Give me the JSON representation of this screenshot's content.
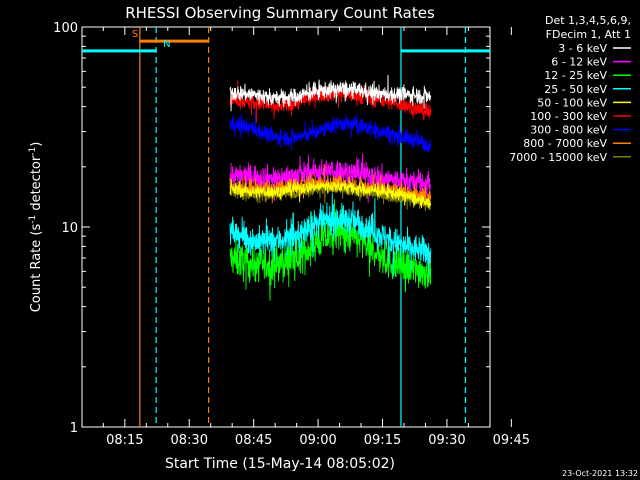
{
  "chart_data": {
    "type": "line",
    "title": "RHESSI Observing Summary Count Rates",
    "xlabel": "Start Time (15-May-14 08:05:02)",
    "ylabel_main": "Count Rate (s",
    "ylabel_sup1": "-1",
    "ylabel_mid": " detector",
    "ylabel_sup2": "-1",
    "ylabel_end": ")",
    "yscale": "log",
    "xlim_minutes": [
      5.03,
      100.03
    ],
    "ylim": [
      1,
      100
    ],
    "x_ticks": [
      {
        "label": "08:15",
        "minutes": 15
      },
      {
        "label": "08:30",
        "minutes": 30
      },
      {
        "label": "08:45",
        "minutes": 45
      },
      {
        "label": "09:00",
        "minutes": 60
      },
      {
        "label": "09:15",
        "minutes": 75
      },
      {
        "label": "09:30",
        "minutes": 90
      },
      {
        "label": "09:45",
        "minutes": 105
      }
    ],
    "y_ticks": [
      {
        "label": "1",
        "value": 1
      },
      {
        "label": "10",
        "value": 10
      },
      {
        "label": "100",
        "value": 100
      }
    ],
    "legend_header": [
      "Det 1,3,4,5,6,9,",
      "FDecim 1, Att 1"
    ],
    "data_start_min": 39.5,
    "data_end_min": 86.3,
    "series": [
      {
        "name": "3 - 6 keV",
        "color": "#ffffff",
        "points": [
          [
            39.5,
            47
          ],
          [
            45,
            46
          ],
          [
            50,
            44
          ],
          [
            55,
            45
          ],
          [
            60,
            48
          ],
          [
            65,
            49
          ],
          [
            70,
            48
          ],
          [
            75,
            46
          ],
          [
            80,
            46
          ],
          [
            86,
            45
          ]
        ]
      },
      {
        "name": "6 - 12 keV",
        "color": "#ff00ff",
        "points": [
          [
            39.5,
            18
          ],
          [
            45,
            18
          ],
          [
            50,
            17.5
          ],
          [
            55,
            18
          ],
          [
            60,
            19
          ],
          [
            65,
            19
          ],
          [
            70,
            18.5
          ],
          [
            75,
            17.5
          ],
          [
            80,
            17
          ],
          [
            86,
            16.5
          ]
        ]
      },
      {
        "name": "12 - 25 keV",
        "color": "#00ff00",
        "points": [
          [
            39.5,
            7
          ],
          [
            45,
            6.5
          ],
          [
            50,
            6.5
          ],
          [
            55,
            7
          ],
          [
            60,
            8.5
          ],
          [
            65,
            9.5
          ],
          [
            70,
            8.5
          ],
          [
            75,
            7
          ],
          [
            80,
            6.2
          ],
          [
            86,
            6
          ]
        ]
      },
      {
        "name": "25 - 50 keV",
        "color": "#00ffff",
        "points": [
          [
            39.5,
            9.5
          ],
          [
            45,
            8.5
          ],
          [
            50,
            8.5
          ],
          [
            55,
            9
          ],
          [
            60,
            10.5
          ],
          [
            65,
            11
          ],
          [
            70,
            10.5
          ],
          [
            75,
            9
          ],
          [
            80,
            8
          ],
          [
            86,
            7.5
          ]
        ]
      },
      {
        "name": "50 - 100 keV",
        "color": "#ffff00",
        "points": [
          [
            39.5,
            15.5
          ],
          [
            45,
            15
          ],
          [
            50,
            15
          ],
          [
            55,
            15.5
          ],
          [
            60,
            16
          ],
          [
            65,
            16
          ],
          [
            70,
            15.5
          ],
          [
            75,
            15
          ],
          [
            80,
            14.5
          ],
          [
            86,
            13
          ]
        ]
      },
      {
        "name": "100 - 300 keV",
        "color": "#ff0000",
        "points": [
          [
            39.5,
            44
          ],
          [
            45,
            42
          ],
          [
            50,
            40
          ],
          [
            55,
            42
          ],
          [
            60,
            46
          ],
          [
            65,
            47
          ],
          [
            70,
            45
          ],
          [
            75,
            43
          ],
          [
            80,
            41
          ],
          [
            86,
            37
          ]
        ]
      },
      {
        "name": "300 - 800 keV",
        "color": "#0000ff",
        "points": [
          [
            39.5,
            33
          ],
          [
            45,
            31
          ],
          [
            50,
            28
          ],
          [
            55,
            28
          ],
          [
            60,
            30
          ],
          [
            65,
            33
          ],
          [
            70,
            32
          ],
          [
            75,
            30
          ],
          [
            80,
            28
          ],
          [
            86,
            26
          ]
        ]
      },
      {
        "name": "800 - 7000 keV",
        "color": "#ff8000",
        "points": [
          [
            39.5,
            16
          ],
          [
            45,
            15.5
          ],
          [
            50,
            15.5
          ],
          [
            55,
            16
          ],
          [
            60,
            16.5
          ],
          [
            65,
            16.5
          ],
          [
            70,
            16
          ],
          [
            75,
            15.5
          ],
          [
            80,
            15
          ],
          [
            86,
            14
          ]
        ]
      },
      {
        "name": "7000 - 15000 keV",
        "color": "#808000",
        "points": [
          [
            39.5,
            15
          ],
          [
            45,
            14.5
          ],
          [
            50,
            14.5
          ],
          [
            55,
            15
          ],
          [
            60,
            15.5
          ],
          [
            65,
            15.5
          ],
          [
            70,
            15
          ],
          [
            75,
            14.5
          ],
          [
            80,
            14
          ],
          [
            86,
            13
          ]
        ]
      }
    ],
    "noise": [
      {
        "series": "3 - 6 keV",
        "sigma": 0.04
      },
      {
        "series": "6 - 12 keV",
        "sigma": 0.06
      },
      {
        "series": "12 - 25 keV",
        "sigma": 0.09
      },
      {
        "series": "25 - 50 keV",
        "sigma": 0.07
      },
      {
        "series": "50 - 100 keV",
        "sigma": 0.03
      },
      {
        "series": "100 - 300 keV",
        "sigma": 0.04
      },
      {
        "series": "300 - 800 keV",
        "sigma": 0.04
      },
      {
        "series": "800 - 7000 keV",
        "sigma": 0.04
      },
      {
        "series": "7000 - 15000 keV",
        "sigma": 0.03
      }
    ],
    "flags": [
      {
        "label": "S",
        "color": "#ff8000",
        "start_min": 18.5,
        "end_min": 34.5,
        "level": 85
      },
      {
        "label": "N",
        "color": "#00ffff",
        "start_min": 5.03,
        "end_min": 22.3,
        "level": 76
      },
      {
        "label": "",
        "color": "#00ffff",
        "start_min": 79.3,
        "end_min": 100.03,
        "level": 76
      }
    ],
    "vlines": [
      {
        "minutes": 18.5,
        "color": "#ff8000",
        "style": "solid"
      },
      {
        "minutes": 22.3,
        "color": "#00ffff",
        "style": "dashed"
      },
      {
        "minutes": 34.5,
        "color": "#ff8000",
        "style": "dashed"
      },
      {
        "minutes": 79.3,
        "color": "#00ffff",
        "style": "solid"
      },
      {
        "minutes": 94.3,
        "color": "#00ffff",
        "style": "dashed"
      }
    ]
  },
  "footer_date": "23-Oct-2021 13:32"
}
